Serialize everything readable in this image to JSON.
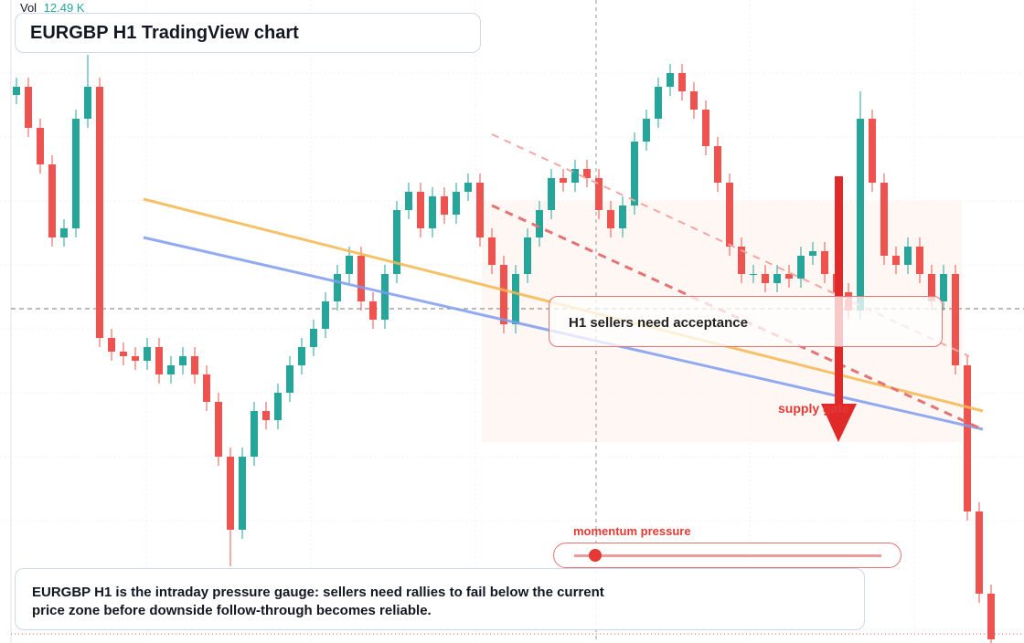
{
  "header": {
    "volume_label": "Vol",
    "volume_value": "12.49 K",
    "title": "EURGBP H1 TradingView chart"
  },
  "chart_data": {
    "type": "candlestick",
    "open": [
      600,
      609,
      564,
      524,
      444,
      454,
      574,
      609,
      334,
      319,
      314,
      309,
      324,
      294,
      304,
      314,
      294,
      264,
      204,
      124,
      204,
      254,
      244,
      274,
      304,
      324,
      344,
      374,
      404,
      424,
      374,
      354,
      404,
      474,
      494,
      454,
      489,
      469,
      494,
      504,
      444,
      414,
      349,
      404,
      444,
      474,
      509,
      504,
      519,
      509,
      474,
      454,
      479,
      549,
      574,
      609,
      624,
      604,
      584,
      544,
      504,
      434,
      404,
      404,
      394,
      404,
      399,
      424,
      429,
      404,
      384,
      364,
      574,
      504,
      424,
      414,
      434,
      404,
      374,
      404,
      304,
      144,
      54
    ],
    "high": [
      619,
      619,
      574,
      534,
      464,
      584,
      644,
      619,
      344,
      329,
      324,
      334,
      334,
      314,
      324,
      324,
      304,
      274,
      214,
      214,
      264,
      264,
      284,
      314,
      334,
      354,
      384,
      414,
      434,
      434,
      384,
      414,
      484,
      504,
      504,
      499,
      499,
      504,
      514,
      514,
      454,
      424,
      414,
      454,
      484,
      519,
      519,
      529,
      529,
      519,
      484,
      489,
      559,
      584,
      619,
      634,
      634,
      614,
      594,
      554,
      514,
      444,
      414,
      414,
      414,
      414,
      434,
      439,
      439,
      414,
      394,
      604,
      584,
      514,
      434,
      444,
      444,
      414,
      414,
      414,
      314,
      154,
      64
    ],
    "low": [
      590,
      554,
      514,
      434,
      434,
      444,
      564,
      324,
      309,
      304,
      299,
      299,
      284,
      284,
      294,
      284,
      254,
      194,
      84,
      114,
      194,
      234,
      234,
      264,
      294,
      314,
      334,
      364,
      394,
      364,
      344,
      344,
      394,
      464,
      444,
      444,
      459,
      459,
      484,
      434,
      404,
      339,
      339,
      394,
      434,
      464,
      494,
      494,
      499,
      464,
      444,
      444,
      469,
      539,
      564,
      599,
      594,
      574,
      534,
      494,
      424,
      394,
      394,
      384,
      384,
      389,
      389,
      414,
      394,
      374,
      354,
      354,
      494,
      414,
      404,
      404,
      394,
      364,
      364,
      294,
      134,
      44,
      0
    ],
    "close": [
      609,
      564,
      524,
      444,
      454,
      574,
      609,
      334,
      319,
      314,
      309,
      324,
      294,
      304,
      314,
      294,
      264,
      204,
      124,
      204,
      254,
      244,
      274,
      304,
      324,
      344,
      374,
      404,
      424,
      374,
      354,
      404,
      474,
      494,
      454,
      489,
      469,
      494,
      504,
      444,
      414,
      349,
      404,
      444,
      474,
      509,
      504,
      519,
      509,
      474,
      454,
      479,
      549,
      574,
      609,
      624,
      604,
      584,
      544,
      504,
      434,
      404,
      404,
      394,
      404,
      399,
      424,
      429,
      404,
      384,
      364,
      574,
      504,
      424,
      414,
      434,
      404,
      374,
      404,
      304,
      144,
      54,
      4
    ],
    "ylim": [
      0,
      704
    ],
    "up_color": "#26a69a",
    "down_color": "#ef5350"
  },
  "annotations": {
    "callout": "H1 sellers need acceptance",
    "zone": "supply gate",
    "gauge": "momentum pressure"
  },
  "note": "EURGBP H1 is the intraday pressure gauge: sellers need rallies to fail below the current price zone before downside follow-through becomes reliable."
}
